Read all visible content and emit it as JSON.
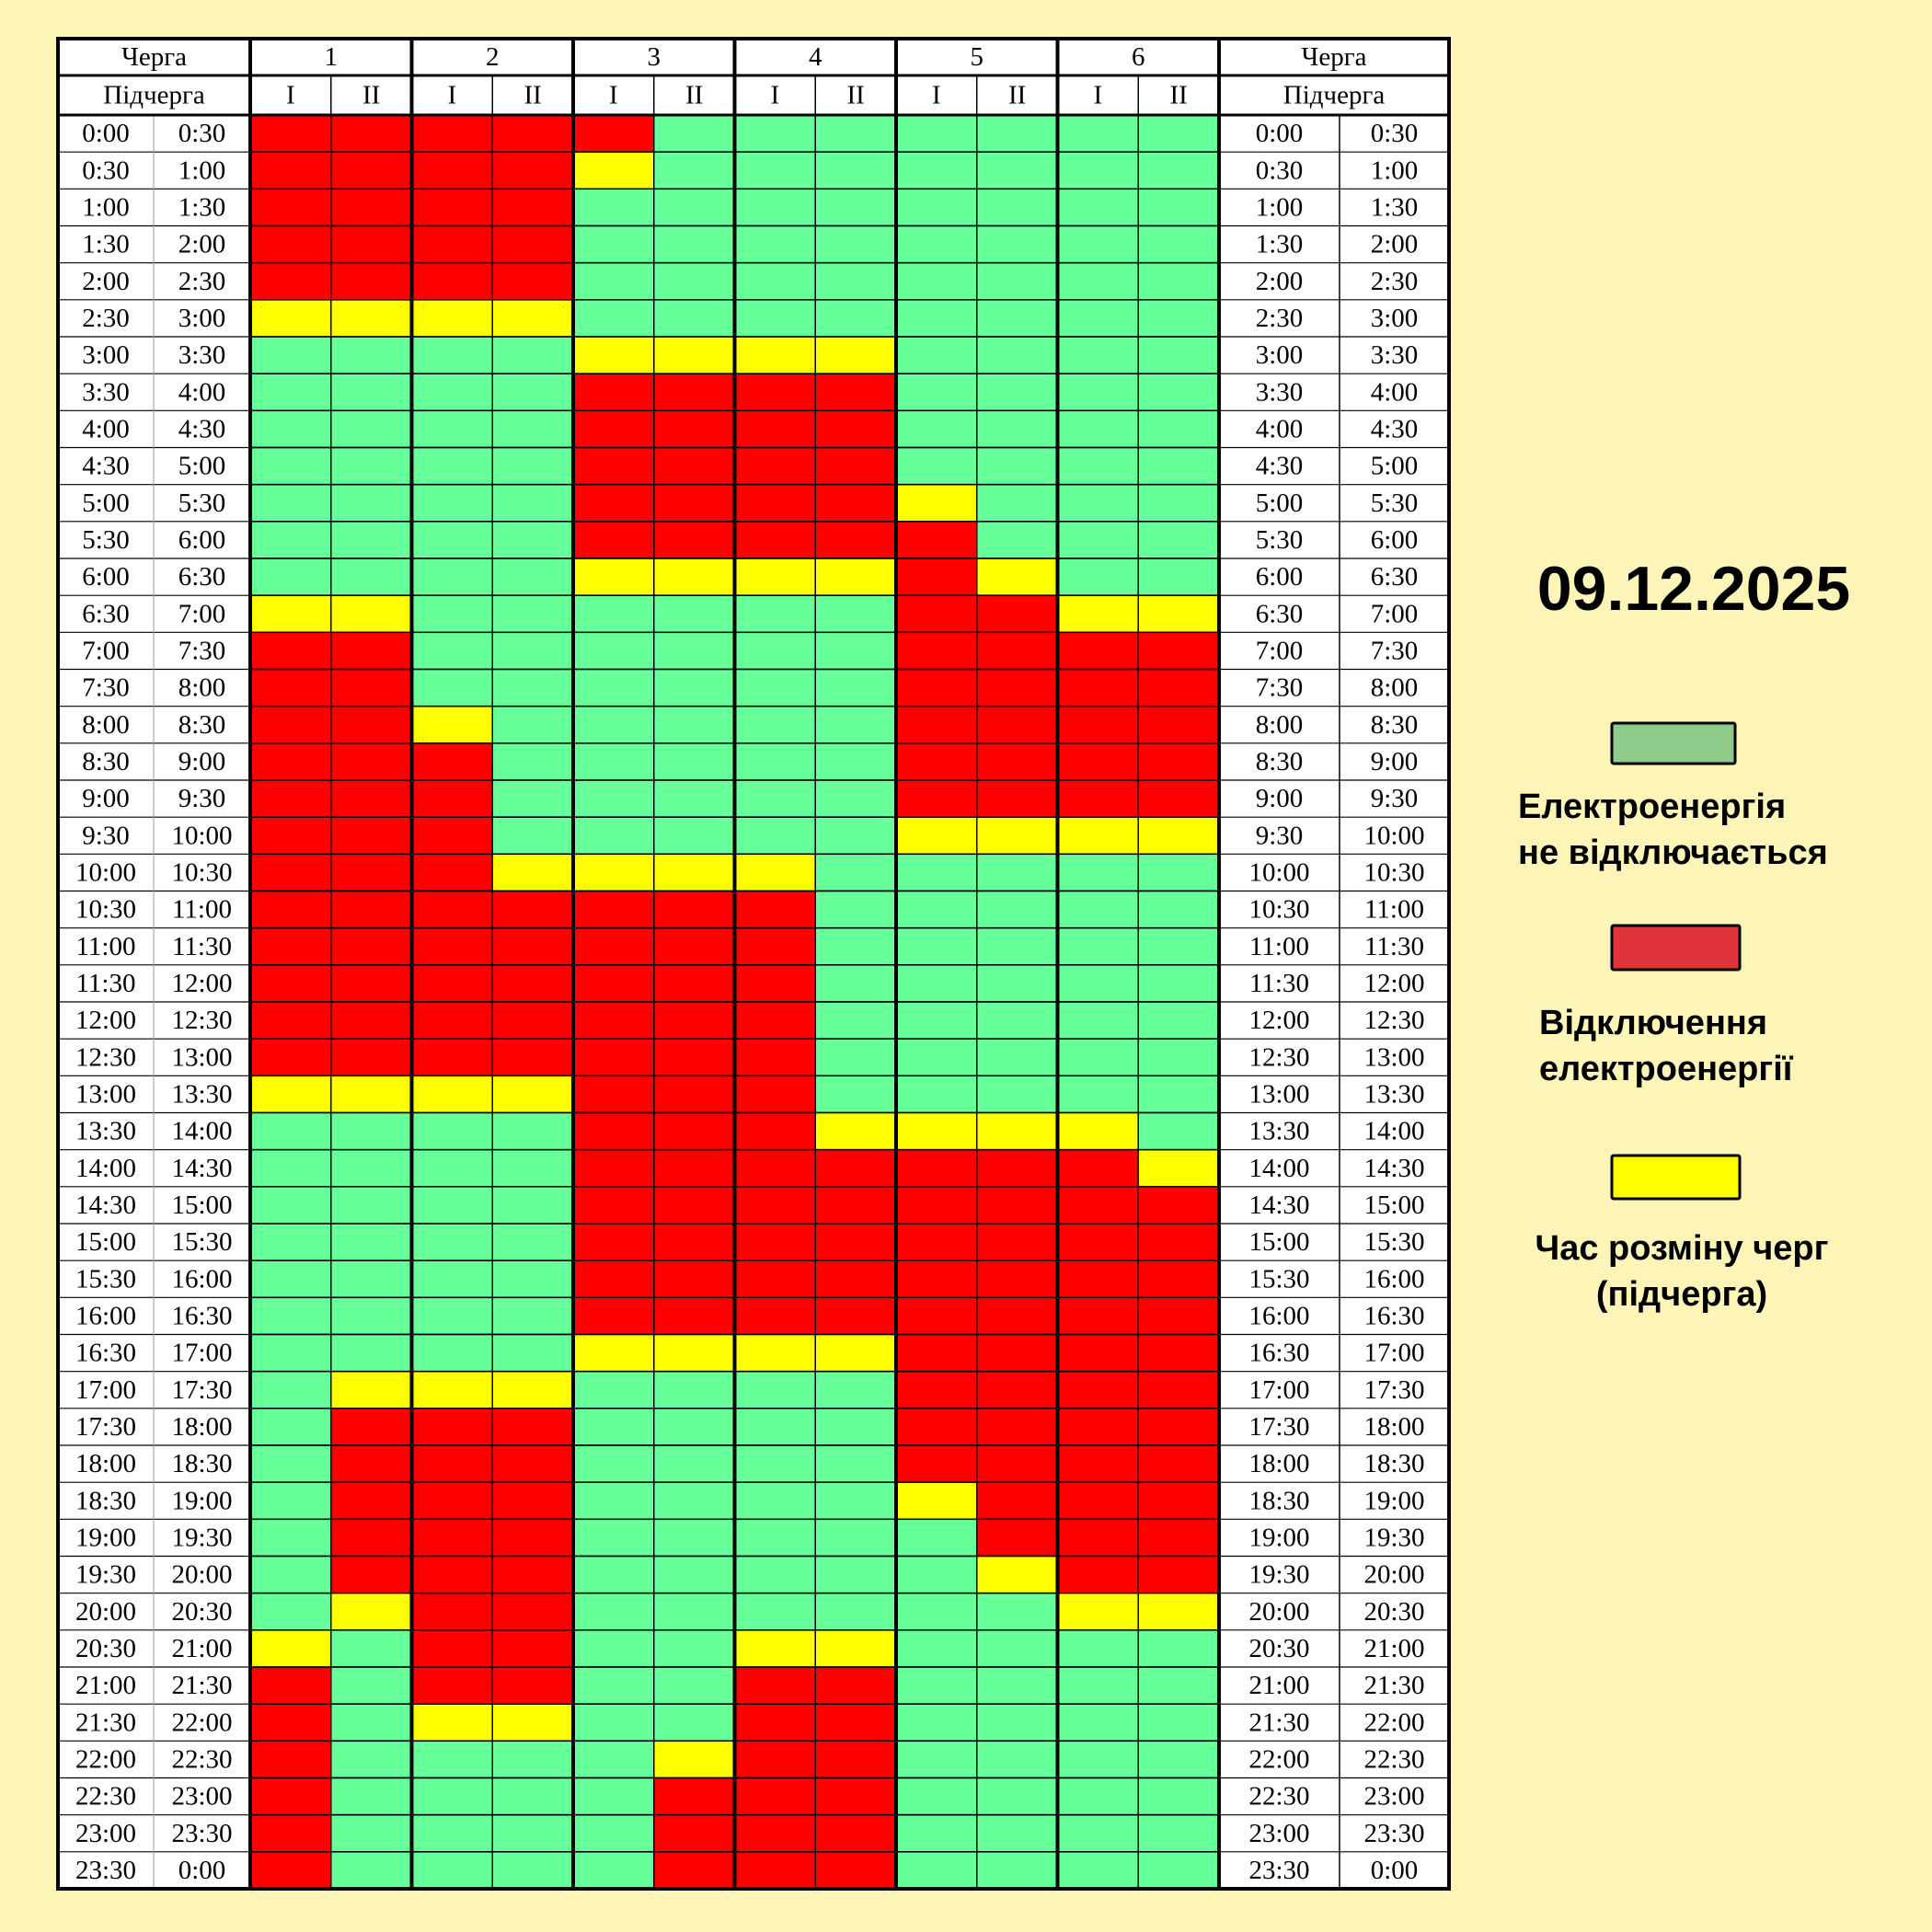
{
  "header": {
    "queue_label": "Черга",
    "queues": [
      "1",
      "2",
      "3",
      "4",
      "5",
      "6"
    ],
    "subqueue_label": "Підчерга",
    "subqueues": [
      "I",
      "II"
    ]
  },
  "rows": [
    {
      "from": "0:00",
      "to": "0:30",
      "cells": [
        "#ff0000",
        "#ff0000",
        "#ff0000",
        "#ff0000",
        "#ff0000",
        "#66ff99",
        "#66ff99",
        "#66ff99",
        "#66ff99",
        "#66ff99",
        "#66ff99",
        "#66ff99"
      ]
    },
    {
      "from": "0:30",
      "to": "1:00",
      "cells": [
        "#ff0000",
        "#ff0000",
        "#ff0000",
        "#ff0000",
        "#ffff00",
        "#66ff99",
        "#66ff99",
        "#66ff99",
        "#66ff99",
        "#66ff99",
        "#66ff99",
        "#66ff99"
      ]
    },
    {
      "from": "1:00",
      "to": "1:30",
      "cells": [
        "#ff0000",
        "#ff0000",
        "#ff0000",
        "#ff0000",
        "#66ff99",
        "#66ff99",
        "#66ff99",
        "#66ff99",
        "#66ff99",
        "#66ff99",
        "#66ff99",
        "#66ff99"
      ]
    },
    {
      "from": "1:30",
      "to": "2:00",
      "cells": [
        "#ff0000",
        "#ff0000",
        "#ff0000",
        "#ff0000",
        "#66ff99",
        "#66ff99",
        "#66ff99",
        "#66ff99",
        "#66ff99",
        "#66ff99",
        "#66ff99",
        "#66ff99"
      ]
    },
    {
      "from": "2:00",
      "to": "2:30",
      "cells": [
        "#ff0000",
        "#ff0000",
        "#ff0000",
        "#ff0000",
        "#66ff99",
        "#66ff99",
        "#66ff99",
        "#66ff99",
        "#66ff99",
        "#66ff99",
        "#66ff99",
        "#66ff99"
      ]
    },
    {
      "from": "2:30",
      "to": "3:00",
      "cells": [
        "#ffff00",
        "#ffff00",
        "#ffff00",
        "#ffff00",
        "#66ff99",
        "#66ff99",
        "#66ff99",
        "#66ff99",
        "#66ff99",
        "#66ff99",
        "#66ff99",
        "#66ff99"
      ]
    },
    {
      "from": "3:00",
      "to": "3:30",
      "cells": [
        "#66ff99",
        "#66ff99",
        "#66ff99",
        "#66ff99",
        "#ffff00",
        "#ffff00",
        "#ffff00",
        "#ffff00",
        "#66ff99",
        "#66ff99",
        "#66ff99",
        "#66ff99"
      ]
    },
    {
      "from": "3:30",
      "to": "4:00",
      "cells": [
        "#66ff99",
        "#66ff99",
        "#66ff99",
        "#66ff99",
        "#ff0000",
        "#ff0000",
        "#ff0000",
        "#ff0000",
        "#66ff99",
        "#66ff99",
        "#66ff99",
        "#66ff99"
      ]
    },
    {
      "from": "4:00",
      "to": "4:30",
      "cells": [
        "#66ff99",
        "#66ff99",
        "#66ff99",
        "#66ff99",
        "#ff0000",
        "#ff0000",
        "#ff0000",
        "#ff0000",
        "#66ff99",
        "#66ff99",
        "#66ff99",
        "#66ff99"
      ]
    },
    {
      "from": "4:30",
      "to": "5:00",
      "cells": [
        "#66ff99",
        "#66ff99",
        "#66ff99",
        "#66ff99",
        "#ff0000",
        "#ff0000",
        "#ff0000",
        "#ff0000",
        "#66ff99",
        "#66ff99",
        "#66ff99",
        "#66ff99"
      ]
    },
    {
      "from": "5:00",
      "to": "5:30",
      "cells": [
        "#66ff99",
        "#66ff99",
        "#66ff99",
        "#66ff99",
        "#ff0000",
        "#ff0000",
        "#ff0000",
        "#ff0000",
        "#ffff00",
        "#66ff99",
        "#66ff99",
        "#66ff99"
      ]
    },
    {
      "from": "5:30",
      "to": "6:00",
      "cells": [
        "#66ff99",
        "#66ff99",
        "#66ff99",
        "#66ff99",
        "#ff0000",
        "#ff0000",
        "#ff0000",
        "#ff0000",
        "#ff0000",
        "#66ff99",
        "#66ff99",
        "#66ff99"
      ]
    },
    {
      "from": "6:00",
      "to": "6:30",
      "cells": [
        "#66ff99",
        "#66ff99",
        "#66ff99",
        "#66ff99",
        "#ffff00",
        "#ffff00",
        "#ffff00",
        "#ffff00",
        "#ff0000",
        "#ffff00",
        "#66ff99",
        "#66ff99"
      ]
    },
    {
      "from": "6:30",
      "to": "7:00",
      "cells": [
        "#ffff00",
        "#ffff00",
        "#66ff99",
        "#66ff99",
        "#66ff99",
        "#66ff99",
        "#66ff99",
        "#66ff99",
        "#ff0000",
        "#ff0000",
        "#ffff00",
        "#ffff00"
      ]
    },
    {
      "from": "7:00",
      "to": "7:30",
      "cells": [
        "#ff0000",
        "#ff0000",
        "#66ff99",
        "#66ff99",
        "#66ff99",
        "#66ff99",
        "#66ff99",
        "#66ff99",
        "#ff0000",
        "#ff0000",
        "#ff0000",
        "#ff0000"
      ]
    },
    {
      "from": "7:30",
      "to": "8:00",
      "cells": [
        "#ff0000",
        "#ff0000",
        "#66ff99",
        "#66ff99",
        "#66ff99",
        "#66ff99",
        "#66ff99",
        "#66ff99",
        "#ff0000",
        "#ff0000",
        "#ff0000",
        "#ff0000"
      ]
    },
    {
      "from": "8:00",
      "to": "8:30",
      "cells": [
        "#ff0000",
        "#ff0000",
        "#ffff00",
        "#66ff99",
        "#66ff99",
        "#66ff99",
        "#66ff99",
        "#66ff99",
        "#ff0000",
        "#ff0000",
        "#ff0000",
        "#ff0000"
      ]
    },
    {
      "from": "8:30",
      "to": "9:00",
      "cells": [
        "#ff0000",
        "#ff0000",
        "#ff0000",
        "#66ff99",
        "#66ff99",
        "#66ff99",
        "#66ff99",
        "#66ff99",
        "#ff0000",
        "#ff0000",
        "#ff0000",
        "#ff0000"
      ]
    },
    {
      "from": "9:00",
      "to": "9:30",
      "cells": [
        "#ff0000",
        "#ff0000",
        "#ff0000",
        "#66ff99",
        "#66ff99",
        "#66ff99",
        "#66ff99",
        "#66ff99",
        "#ff0000",
        "#ff0000",
        "#ff0000",
        "#ff0000"
      ]
    },
    {
      "from": "9:30",
      "to": "10:00",
      "cells": [
        "#ff0000",
        "#ff0000",
        "#ff0000",
        "#66ff99",
        "#66ff99",
        "#66ff99",
        "#66ff99",
        "#66ff99",
        "#ffff00",
        "#ffff00",
        "#ffff00",
        "#ffff00"
      ]
    },
    {
      "from": "10:00",
      "to": "10:30",
      "cells": [
        "#ff0000",
        "#ff0000",
        "#ff0000",
        "#ffff00",
        "#ffff00",
        "#ffff00",
        "#ffff00",
        "#66ff99",
        "#66ff99",
        "#66ff99",
        "#66ff99",
        "#66ff99"
      ]
    },
    {
      "from": "10:30",
      "to": "11:00",
      "cells": [
        "#ff0000",
        "#ff0000",
        "#ff0000",
        "#ff0000",
        "#ff0000",
        "#ff0000",
        "#ff0000",
        "#66ff99",
        "#66ff99",
        "#66ff99",
        "#66ff99",
        "#66ff99"
      ]
    },
    {
      "from": "11:00",
      "to": "11:30",
      "cells": [
        "#ff0000",
        "#ff0000",
        "#ff0000",
        "#ff0000",
        "#ff0000",
        "#ff0000",
        "#ff0000",
        "#66ff99",
        "#66ff99",
        "#66ff99",
        "#66ff99",
        "#66ff99"
      ]
    },
    {
      "from": "11:30",
      "to": "12:00",
      "cells": [
        "#ff0000",
        "#ff0000",
        "#ff0000",
        "#ff0000",
        "#ff0000",
        "#ff0000",
        "#ff0000",
        "#66ff99",
        "#66ff99",
        "#66ff99",
        "#66ff99",
        "#66ff99"
      ]
    },
    {
      "from": "12:00",
      "to": "12:30",
      "cells": [
        "#ff0000",
        "#ff0000",
        "#ff0000",
        "#ff0000",
        "#ff0000",
        "#ff0000",
        "#ff0000",
        "#66ff99",
        "#66ff99",
        "#66ff99",
        "#66ff99",
        "#66ff99"
      ]
    },
    {
      "from": "12:30",
      "to": "13:00",
      "cells": [
        "#ff0000",
        "#ff0000",
        "#ff0000",
        "#ff0000",
        "#ff0000",
        "#ff0000",
        "#ff0000",
        "#66ff99",
        "#66ff99",
        "#66ff99",
        "#66ff99",
        "#66ff99"
      ]
    },
    {
      "from": "13:00",
      "to": "13:30",
      "cells": [
        "#ffff00",
        "#ffff00",
        "#ffff00",
        "#ffff00",
        "#ff0000",
        "#ff0000",
        "#ff0000",
        "#66ff99",
        "#66ff99",
        "#66ff99",
        "#66ff99",
        "#66ff99"
      ]
    },
    {
      "from": "13:30",
      "to": "14:00",
      "cells": [
        "#66ff99",
        "#66ff99",
        "#66ff99",
        "#66ff99",
        "#ff0000",
        "#ff0000",
        "#ff0000",
        "#ffff00",
        "#ffff00",
        "#ffff00",
        "#ffff00",
        "#66ff99"
      ]
    },
    {
      "from": "14:00",
      "to": "14:30",
      "cells": [
        "#66ff99",
        "#66ff99",
        "#66ff99",
        "#66ff99",
        "#ff0000",
        "#ff0000",
        "#ff0000",
        "#ff0000",
        "#ff0000",
        "#ff0000",
        "#ff0000",
        "#ffff00"
      ]
    },
    {
      "from": "14:30",
      "to": "15:00",
      "cells": [
        "#66ff99",
        "#66ff99",
        "#66ff99",
        "#66ff99",
        "#ff0000",
        "#ff0000",
        "#ff0000",
        "#ff0000",
        "#ff0000",
        "#ff0000",
        "#ff0000",
        "#ff0000"
      ]
    },
    {
      "from": "15:00",
      "to": "15:30",
      "cells": [
        "#66ff99",
        "#66ff99",
        "#66ff99",
        "#66ff99",
        "#ff0000",
        "#ff0000",
        "#ff0000",
        "#ff0000",
        "#ff0000",
        "#ff0000",
        "#ff0000",
        "#ff0000"
      ]
    },
    {
      "from": "15:30",
      "to": "16:00",
      "cells": [
        "#66ff99",
        "#66ff99",
        "#66ff99",
        "#66ff99",
        "#ff0000",
        "#ff0000",
        "#ff0000",
        "#ff0000",
        "#ff0000",
        "#ff0000",
        "#ff0000",
        "#ff0000"
      ]
    },
    {
      "from": "16:00",
      "to": "16:30",
      "cells": [
        "#66ff99",
        "#66ff99",
        "#66ff99",
        "#66ff99",
        "#ff0000",
        "#ff0000",
        "#ff0000",
        "#ff0000",
        "#ff0000",
        "#ff0000",
        "#ff0000",
        "#ff0000"
      ]
    },
    {
      "from": "16:30",
      "to": "17:00",
      "cells": [
        "#66ff99",
        "#66ff99",
        "#66ff99",
        "#66ff99",
        "#ffff00",
        "#ffff00",
        "#ffff00",
        "#ffff00",
        "#ff0000",
        "#ff0000",
        "#ff0000",
        "#ff0000"
      ]
    },
    {
      "from": "17:00",
      "to": "17:30",
      "cells": [
        "#66ff99",
        "#ffff00",
        "#ffff00",
        "#ffff00",
        "#66ff99",
        "#66ff99",
        "#66ff99",
        "#66ff99",
        "#ff0000",
        "#ff0000",
        "#ff0000",
        "#ff0000"
      ]
    },
    {
      "from": "17:30",
      "to": "18:00",
      "cells": [
        "#66ff99",
        "#ff0000",
        "#ff0000",
        "#ff0000",
        "#66ff99",
        "#66ff99",
        "#66ff99",
        "#66ff99",
        "#ff0000",
        "#ff0000",
        "#ff0000",
        "#ff0000"
      ]
    },
    {
      "from": "18:00",
      "to": "18:30",
      "cells": [
        "#66ff99",
        "#ff0000",
        "#ff0000",
        "#ff0000",
        "#66ff99",
        "#66ff99",
        "#66ff99",
        "#66ff99",
        "#ff0000",
        "#ff0000",
        "#ff0000",
        "#ff0000"
      ]
    },
    {
      "from": "18:30",
      "to": "19:00",
      "cells": [
        "#66ff99",
        "#ff0000",
        "#ff0000",
        "#ff0000",
        "#66ff99",
        "#66ff99",
        "#66ff99",
        "#66ff99",
        "#ffff00",
        "#ff0000",
        "#ff0000",
        "#ff0000"
      ]
    },
    {
      "from": "19:00",
      "to": "19:30",
      "cells": [
        "#66ff99",
        "#ff0000",
        "#ff0000",
        "#ff0000",
        "#66ff99",
        "#66ff99",
        "#66ff99",
        "#66ff99",
        "#66ff99",
        "#ff0000",
        "#ff0000",
        "#ff0000"
      ]
    },
    {
      "from": "19:30",
      "to": "20:00",
      "cells": [
        "#66ff99",
        "#ff0000",
        "#ff0000",
        "#ff0000",
        "#66ff99",
        "#66ff99",
        "#66ff99",
        "#66ff99",
        "#66ff99",
        "#ffff00",
        "#ff0000",
        "#ff0000"
      ]
    },
    {
      "from": "20:00",
      "to": "20:30",
      "cells": [
        "#66ff99",
        "#ffff00",
        "#ff0000",
        "#ff0000",
        "#66ff99",
        "#66ff99",
        "#66ff99",
        "#66ff99",
        "#66ff99",
        "#66ff99",
        "#ffff00",
        "#ffff00"
      ]
    },
    {
      "from": "20:30",
      "to": "21:00",
      "cells": [
        "#ffff00",
        "#66ff99",
        "#ff0000",
        "#ff0000",
        "#66ff99",
        "#66ff99",
        "#ffff00",
        "#ffff00",
        "#66ff99",
        "#66ff99",
        "#66ff99",
        "#66ff99"
      ]
    },
    {
      "from": "21:00",
      "to": "21:30",
      "cells": [
        "#ff0000",
        "#66ff99",
        "#ff0000",
        "#ff0000",
        "#66ff99",
        "#66ff99",
        "#ff0000",
        "#ff0000",
        "#66ff99",
        "#66ff99",
        "#66ff99",
        "#66ff99"
      ]
    },
    {
      "from": "21:30",
      "to": "22:00",
      "cells": [
        "#ff0000",
        "#66ff99",
        "#ffff00",
        "#ffff00",
        "#66ff99",
        "#66ff99",
        "#ff0000",
        "#ff0000",
        "#66ff99",
        "#66ff99",
        "#66ff99",
        "#66ff99"
      ]
    },
    {
      "from": "22:00",
      "to": "22:30",
      "cells": [
        "#ff0000",
        "#66ff99",
        "#66ff99",
        "#66ff99",
        "#66ff99",
        "#ffff00",
        "#ff0000",
        "#ff0000",
        "#66ff99",
        "#66ff99",
        "#66ff99",
        "#66ff99"
      ]
    },
    {
      "from": "22:30",
      "to": "23:00",
      "cells": [
        "#ff0000",
        "#66ff99",
        "#66ff99",
        "#66ff99",
        "#66ff99",
        "#ff0000",
        "#ff0000",
        "#ff0000",
        "#66ff99",
        "#66ff99",
        "#66ff99",
        "#66ff99"
      ]
    },
    {
      "from": "23:00",
      "to": "23:30",
      "cells": [
        "#ff0000",
        "#66ff99",
        "#66ff99",
        "#66ff99",
        "#66ff99",
        "#ff0000",
        "#ff0000",
        "#ff0000",
        "#66ff99",
        "#66ff99",
        "#66ff99",
        "#66ff99"
      ]
    },
    {
      "from": "23:30",
      "to": "0:00",
      "cells": [
        "#ff0000",
        "#66ff99",
        "#66ff99",
        "#66ff99",
        "#66ff99",
        "#ff0000",
        "#ff0000",
        "#ff0000",
        "#66ff99",
        "#66ff99",
        "#66ff99",
        "#66ff99"
      ]
    }
  ],
  "date": "09.12.2025",
  "legend": [
    {
      "color": "#8fcb8a",
      "lines": [
        "Електроенергія",
        "не відключається"
      ]
    },
    {
      "color": "#e03538",
      "lines": [
        "Відключення",
        "електроенергії"
      ]
    },
    {
      "color": "#ffff00",
      "lines": [
        "Час розміну черг",
        "(підчерга)"
      ]
    }
  ]
}
